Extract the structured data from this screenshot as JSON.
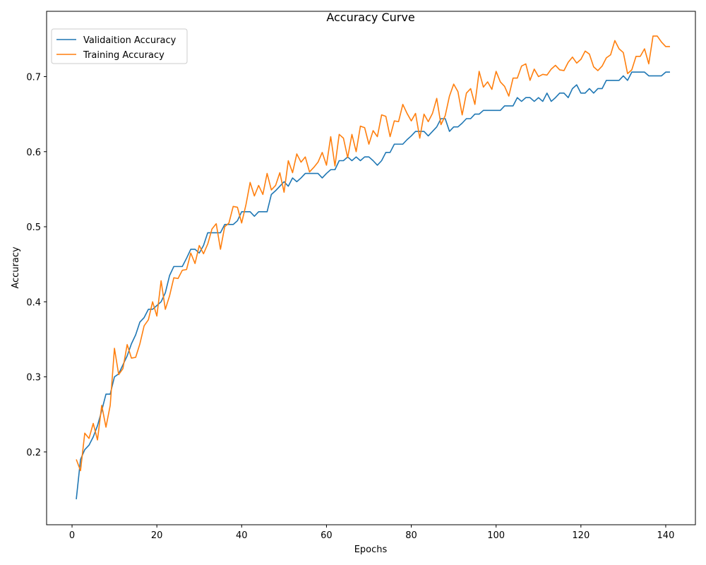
{
  "chart_data": {
    "type": "line",
    "title": "Accuracy Curve",
    "xlabel": "Epochs",
    "ylabel": "Accuracy",
    "xlim": [
      -6,
      147
    ],
    "ylim": [
      0.103,
      0.787
    ],
    "xticks": [
      0,
      20,
      40,
      60,
      80,
      100,
      120,
      140
    ],
    "yticks": [
      0.2,
      0.3,
      0.4,
      0.5,
      0.6,
      0.7
    ],
    "grid": false,
    "legend_position": "top-left",
    "series": [
      {
        "name": "Validaition Accuracy",
        "color": "#1f77b4",
        "values": [
          0.137,
          0.19,
          0.203,
          0.209,
          0.22,
          0.235,
          0.255,
          0.277,
          0.277,
          0.3,
          0.304,
          0.316,
          0.328,
          0.344,
          0.356,
          0.373,
          0.379,
          0.39,
          0.39,
          0.395,
          0.4,
          0.412,
          0.435,
          0.447,
          0.447,
          0.447,
          0.458,
          0.47,
          0.47,
          0.465,
          0.475,
          0.492,
          0.492,
          0.492,
          0.492,
          0.503,
          0.503,
          0.503,
          0.508,
          0.52,
          0.52,
          0.52,
          0.514,
          0.52,
          0.52,
          0.52,
          0.543,
          0.548,
          0.554,
          0.56,
          0.554,
          0.565,
          0.56,
          0.565,
          0.571,
          0.571,
          0.571,
          0.571,
          0.565,
          0.571,
          0.576,
          0.576,
          0.588,
          0.588,
          0.593,
          0.588,
          0.593,
          0.588,
          0.593,
          0.593,
          0.588,
          0.582,
          0.588,
          0.599,
          0.599,
          0.61,
          0.61,
          0.61,
          0.616,
          0.621,
          0.627,
          0.627,
          0.627,
          0.621,
          0.627,
          0.633,
          0.644,
          0.644,
          0.627,
          0.633,
          0.633,
          0.638,
          0.644,
          0.644,
          0.65,
          0.65,
          0.655,
          0.655,
          0.655,
          0.655,
          0.655,
          0.661,
          0.661,
          0.661,
          0.672,
          0.667,
          0.672,
          0.672,
          0.667,
          0.672,
          0.667,
          0.678,
          0.667,
          0.672,
          0.678,
          0.678,
          0.672,
          0.684,
          0.689,
          0.678,
          0.678,
          0.684,
          0.678,
          0.684,
          0.684,
          0.695,
          0.695,
          0.695,
          0.695,
          0.701,
          0.695,
          0.706,
          0.706,
          0.706,
          0.706,
          0.701,
          0.701,
          0.701,
          0.701,
          0.706,
          0.706
        ]
      },
      {
        "name": "Training Accuracy",
        "color": "#ff7f0e",
        "values": [
          0.19,
          0.175,
          0.225,
          0.218,
          0.238,
          0.216,
          0.262,
          0.233,
          0.262,
          0.338,
          0.303,
          0.311,
          0.343,
          0.325,
          0.326,
          0.344,
          0.368,
          0.376,
          0.4,
          0.381,
          0.428,
          0.39,
          0.408,
          0.432,
          0.431,
          0.442,
          0.443,
          0.465,
          0.451,
          0.475,
          0.464,
          0.477,
          0.497,
          0.504,
          0.47,
          0.5,
          0.505,
          0.527,
          0.526,
          0.505,
          0.529,
          0.559,
          0.541,
          0.555,
          0.543,
          0.571,
          0.549,
          0.555,
          0.572,
          0.546,
          0.588,
          0.572,
          0.597,
          0.586,
          0.593,
          0.573,
          0.579,
          0.586,
          0.599,
          0.582,
          0.62,
          0.581,
          0.623,
          0.618,
          0.592,
          0.623,
          0.6,
          0.634,
          0.632,
          0.61,
          0.628,
          0.62,
          0.649,
          0.647,
          0.62,
          0.641,
          0.64,
          0.663,
          0.651,
          0.641,
          0.651,
          0.618,
          0.65,
          0.64,
          0.651,
          0.671,
          0.636,
          0.648,
          0.674,
          0.69,
          0.68,
          0.649,
          0.678,
          0.684,
          0.663,
          0.707,
          0.686,
          0.693,
          0.683,
          0.707,
          0.693,
          0.687,
          0.674,
          0.698,
          0.698,
          0.714,
          0.717,
          0.695,
          0.71,
          0.7,
          0.703,
          0.702,
          0.71,
          0.715,
          0.709,
          0.708,
          0.719,
          0.726,
          0.718,
          0.723,
          0.734,
          0.73,
          0.713,
          0.708,
          0.714,
          0.725,
          0.729,
          0.748,
          0.737,
          0.732,
          0.704,
          0.709,
          0.727,
          0.727,
          0.737,
          0.717,
          0.754,
          0.754,
          0.746,
          0.74,
          0.74
        ]
      }
    ]
  }
}
